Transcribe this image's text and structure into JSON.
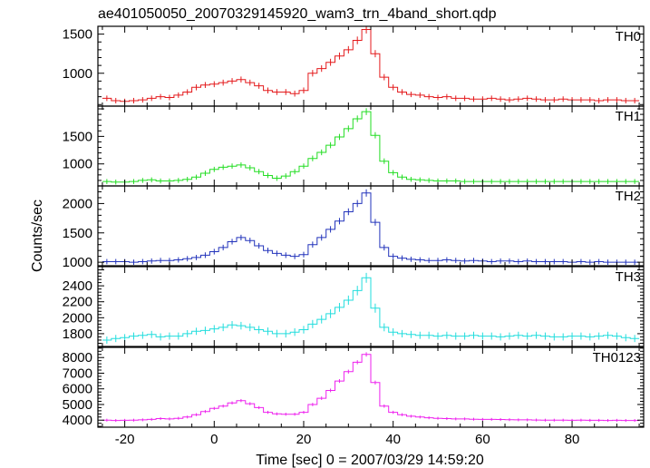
{
  "title": "ae401050050_20070329145920_wam3_trn_4band_short.qdp",
  "xlabel": "Time [sec] 0 = 2007/03/29 14:59:20",
  "ylabel": "Counts/sec",
  "chart_data": {
    "type": "line",
    "style": "step histogram with error bars",
    "title": "ae401050050_20070329145920_wam3_trn_4band_short.qdp",
    "xlabel": "Time [sec] 0 = 2007/03/29 14:59:20",
    "ylabel": "Counts/sec",
    "xlim": [
      -26,
      96
    ],
    "xticks": [
      -20,
      0,
      20,
      40,
      60,
      80
    ],
    "x": [
      -24,
      -22,
      -20,
      -18,
      -16,
      -14,
      -12,
      -10,
      -8,
      -6,
      -4,
      -2,
      0,
      2,
      4,
      6,
      8,
      10,
      12,
      14,
      16,
      18,
      20,
      22,
      24,
      26,
      28,
      30,
      32,
      34,
      36,
      38,
      40,
      42,
      44,
      46,
      48,
      50,
      52,
      54,
      56,
      58,
      60,
      62,
      64,
      66,
      68,
      70,
      72,
      74,
      76,
      78,
      80,
      82,
      84,
      86,
      88,
      90,
      92,
      94
    ],
    "panels": [
      {
        "name": "TH0",
        "color": "#e41a1c",
        "ylim": [
          580,
          1600
        ],
        "yticks": [
          1000,
          1500
        ],
        "values": [
          680,
          650,
          640,
          650,
          660,
          680,
          700,
          690,
          720,
          760,
          820,
          850,
          860,
          880,
          900,
          920,
          880,
          840,
          780,
          760,
          760,
          740,
          780,
          1000,
          1060,
          1140,
          1220,
          1300,
          1420,
          1560,
          1250,
          950,
          820,
          760,
          730,
          720,
          700,
          690,
          700,
          680,
          680,
          670,
          670,
          680,
          670,
          660,
          670,
          680,
          670,
          660,
          660,
          670,
          660,
          660,
          660,
          650,
          660,
          660,
          650,
          650
        ],
        "errors": [
          35,
          35,
          35,
          35,
          35,
          35,
          35,
          35,
          35,
          35,
          38,
          38,
          38,
          38,
          38,
          38,
          38,
          38,
          38,
          38,
          38,
          38,
          38,
          42,
          42,
          45,
          45,
          47,
          49,
          52,
          46,
          40,
          38,
          36,
          35,
          35,
          35,
          35,
          35,
          35,
          35,
          35,
          35,
          35,
          35,
          35,
          35,
          35,
          35,
          35,
          35,
          35,
          35,
          35,
          35,
          35,
          35,
          35,
          35,
          35
        ]
      },
      {
        "name": "TH1",
        "color": "#22dd22",
        "ylim": [
          600,
          2050
        ],
        "yticks": [
          1000,
          1500
        ],
        "values": [
          680,
          670,
          670,
          680,
          700,
          710,
          690,
          690,
          700,
          720,
          760,
          830,
          900,
          940,
          960,
          980,
          930,
          860,
          790,
          740,
          780,
          860,
          960,
          1100,
          1210,
          1340,
          1490,
          1640,
          1820,
          1950,
          1520,
          1050,
          840,
          760,
          720,
          710,
          700,
          690,
          690,
          690,
          680,
          680,
          680,
          680,
          680,
          680,
          680,
          680,
          680,
          680,
          680,
          680,
          680,
          680,
          680,
          680,
          680,
          680,
          680,
          680
        ],
        "errors": [
          45,
          45,
          45,
          45,
          45,
          45,
          45,
          45,
          45,
          45,
          45,
          48,
          48,
          48,
          48,
          48,
          48,
          48,
          48,
          48,
          48,
          48,
          48,
          52,
          52,
          55,
          55,
          58,
          60,
          62,
          57,
          50,
          48,
          46,
          45,
          45,
          45,
          45,
          45,
          45,
          45,
          45,
          45,
          45,
          45,
          45,
          45,
          45,
          45,
          45,
          45,
          45,
          45,
          45,
          45,
          45,
          45,
          45,
          45,
          45
        ]
      },
      {
        "name": "TH2",
        "color": "#2233bb",
        "ylim": [
          940,
          2300
        ],
        "yticks": [
          1000,
          1500,
          2000
        ],
        "values": [
          1010,
          1010,
          1010,
          1000,
          1010,
          1020,
          1030,
          1030,
          1040,
          1060,
          1080,
          1120,
          1180,
          1250,
          1350,
          1420,
          1370,
          1280,
          1200,
          1150,
          1120,
          1100,
          1130,
          1300,
          1420,
          1560,
          1700,
          1860,
          2000,
          2180,
          1680,
          1250,
          1100,
          1070,
          1050,
          1040,
          1030,
          1030,
          1040,
          1030,
          1020,
          1030,
          1020,
          1010,
          1020,
          1020,
          1010,
          1020,
          1010,
          1010,
          1010,
          1010,
          1000,
          1010,
          1000,
          1010,
          1000,
          1000,
          1000,
          1000
        ],
        "errors": [
          45,
          45,
          45,
          45,
          45,
          45,
          45,
          45,
          45,
          45,
          45,
          48,
          48,
          48,
          48,
          48,
          48,
          48,
          48,
          48,
          48,
          48,
          48,
          52,
          52,
          55,
          55,
          58,
          60,
          62,
          57,
          50,
          48,
          46,
          45,
          45,
          45,
          45,
          45,
          45,
          45,
          45,
          45,
          45,
          45,
          45,
          45,
          45,
          45,
          45,
          45,
          45,
          45,
          45,
          45,
          45,
          45,
          45,
          45,
          45
        ]
      },
      {
        "name": "TH3",
        "color": "#22dddd",
        "ylim": [
          1640,
          2640
        ],
        "yticks": [
          1800,
          2000,
          2200,
          2400
        ],
        "values": [
          1720,
          1740,
          1750,
          1770,
          1780,
          1790,
          1760,
          1770,
          1770,
          1800,
          1830,
          1840,
          1860,
          1880,
          1910,
          1900,
          1880,
          1850,
          1830,
          1800,
          1800,
          1820,
          1850,
          1920,
          1980,
          2050,
          2130,
          2220,
          2340,
          2500,
          2120,
          1880,
          1820,
          1800,
          1790,
          1780,
          1780,
          1770,
          1780,
          1770,
          1770,
          1780,
          1770,
          1770,
          1760,
          1770,
          1780,
          1770,
          1780,
          1770,
          1760,
          1760,
          1770,
          1770,
          1760,
          1770,
          1780,
          1770,
          1750,
          1740
        ],
        "errors": [
          45,
          45,
          45,
          45,
          45,
          45,
          45,
          45,
          45,
          45,
          45,
          48,
          48,
          48,
          48,
          48,
          48,
          48,
          48,
          48,
          48,
          48,
          48,
          52,
          52,
          55,
          55,
          58,
          60,
          62,
          57,
          50,
          48,
          46,
          45,
          45,
          45,
          45,
          45,
          45,
          45,
          45,
          45,
          45,
          45,
          45,
          45,
          45,
          45,
          45,
          45,
          45,
          45,
          45,
          45,
          45,
          45,
          45,
          45,
          45
        ]
      },
      {
        "name": "TH0123",
        "color": "#ee22ee",
        "ylim": [
          3550,
          8650
        ],
        "yticks": [
          4000,
          5000,
          6000,
          7000,
          8000
        ],
        "values": [
          4000,
          3980,
          3990,
          4000,
          4020,
          4050,
          4100,
          4080,
          4120,
          4200,
          4350,
          4550,
          4750,
          4900,
          5100,
          5250,
          5050,
          4800,
          4500,
          4400,
          4380,
          4380,
          4500,
          5000,
          5400,
          5900,
          6500,
          7100,
          7700,
          8200,
          6400,
          4900,
          4500,
          4350,
          4250,
          4200,
          4150,
          4120,
          4100,
          4080,
          4080,
          4060,
          4050,
          4050,
          4040,
          4030,
          4020,
          4020,
          4010,
          4000,
          4000,
          4000,
          3990,
          4000,
          3990,
          3990,
          3980,
          3990,
          3980,
          3980
        ],
        "errors": [
          90,
          90,
          90,
          90,
          90,
          90,
          90,
          90,
          90,
          90,
          95,
          95,
          95,
          95,
          100,
          100,
          100,
          95,
          95,
          95,
          95,
          95,
          95,
          105,
          110,
          115,
          120,
          125,
          130,
          140,
          125,
          105,
          100,
          95,
          90,
          90,
          90,
          90,
          90,
          90,
          90,
          90,
          90,
          90,
          90,
          90,
          90,
          90,
          90,
          90,
          90,
          90,
          90,
          90,
          90,
          90,
          90,
          90,
          90,
          90
        ]
      }
    ]
  }
}
